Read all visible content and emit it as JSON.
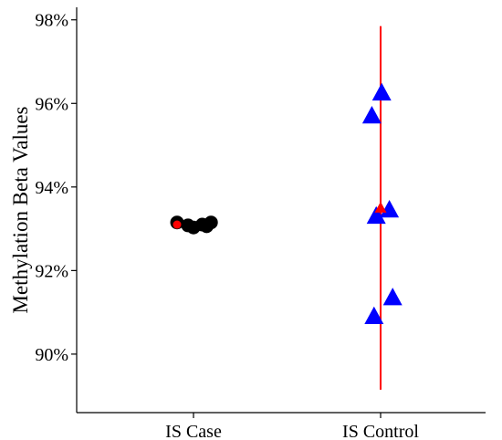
{
  "chart_data": {
    "type": "scatter",
    "title": "",
    "xlabel": "",
    "ylabel": "Methylation Beta Values",
    "categories": [
      "IS Case",
      "IS Control"
    ],
    "ylim": [
      88.6,
      98.3
    ],
    "yticks": [
      90,
      92,
      94,
      96,
      98
    ],
    "ytick_labels": [
      "90%",
      "92%",
      "94%",
      "96%",
      "98%"
    ],
    "grid": false,
    "legend": "none",
    "series": [
      {
        "category": "IS Case",
        "marker": "circle",
        "color": "#000000",
        "points": [
          {
            "jitter": -0.15,
            "y": 93.15
          },
          {
            "jitter": -0.05,
            "y": 93.08
          },
          {
            "jitter": 0.0,
            "y": 93.03
          },
          {
            "jitter": 0.08,
            "y": 93.1
          },
          {
            "jitter": 0.12,
            "y": 93.06
          },
          {
            "jitter": 0.16,
            "y": 93.15
          }
        ],
        "summary": {
          "mean": 93.1,
          "lower": 93.03,
          "upper": 93.16,
          "color": "#ff0000",
          "marker": "circle"
        }
      },
      {
        "category": "IS Control",
        "marker": "triangle",
        "color": "#0000ff",
        "points": [
          {
            "jitter": -0.08,
            "y": 95.7
          },
          {
            "jitter": 0.01,
            "y": 96.25
          },
          {
            "jitter": -0.04,
            "y": 93.3
          },
          {
            "jitter": 0.08,
            "y": 93.45
          },
          {
            "jitter": -0.06,
            "y": 90.9
          },
          {
            "jitter": 0.11,
            "y": 91.35
          }
        ],
        "summary": {
          "mean": 93.5,
          "lower": 89.15,
          "upper": 97.85,
          "color": "#ff0000",
          "marker": "triangle"
        }
      }
    ]
  }
}
